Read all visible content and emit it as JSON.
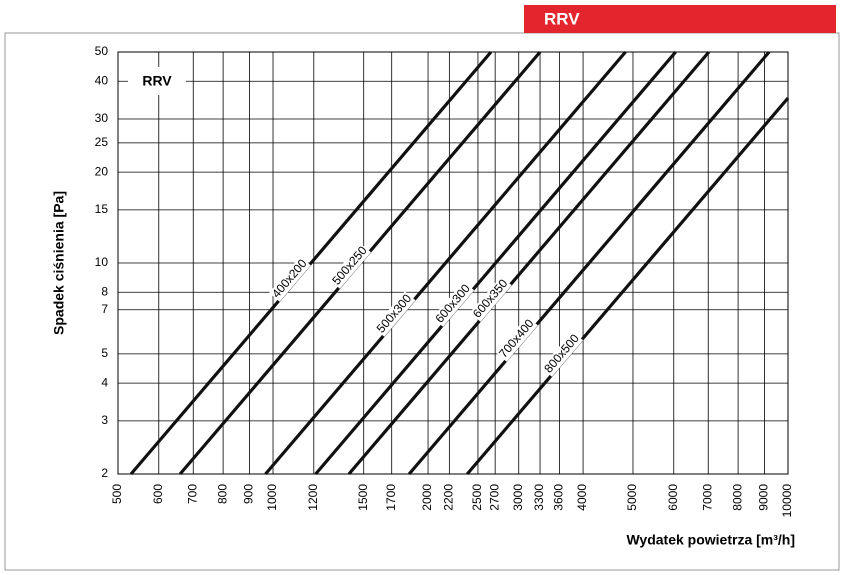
{
  "chart_data": {
    "type": "line",
    "title": "RRV",
    "inner_label": "RRV",
    "x_label": "Wydatek powietrza [m³/h]",
    "y_label": "Spadek ciśnienia [Pa]",
    "log_x": true,
    "log_y": true,
    "grid": true,
    "color": "#111111",
    "title_color": "#e3262d",
    "xlim": [
      500,
      10000
    ],
    "ylim": [
      2,
      50
    ],
    "xticks": [
      500,
      600,
      700,
      800,
      900,
      1000,
      1200,
      1500,
      1700,
      2000,
      2200,
      2500,
      2700,
      3000,
      3300,
      3600,
      4000,
      5000,
      6000,
      7000,
      8000,
      9000,
      10000
    ],
    "yticks": [
      2,
      3,
      4,
      5,
      7,
      8,
      10,
      15,
      20,
      25,
      30,
      40,
      50
    ],
    "series": [
      {
        "name": "400x200",
        "x": [
          530,
          2650
        ],
        "values": [
          2,
          50
        ]
      },
      {
        "name": "500x250",
        "x": [
          660,
          3300
        ],
        "values": [
          2,
          50
        ]
      },
      {
        "name": "500x300",
        "x": [
          967,
          4835
        ],
        "values": [
          2,
          50
        ]
      },
      {
        "name": "600x300",
        "x": [
          1210,
          6050
        ],
        "values": [
          2,
          50
        ]
      },
      {
        "name": "600x350",
        "x": [
          1404,
          7020
        ],
        "values": [
          2,
          50
        ]
      },
      {
        "name": "700x400",
        "x": [
          1838,
          9190
        ],
        "values": [
          2,
          50
        ]
      },
      {
        "name": "800x500",
        "x": [
          2383,
          10000
        ],
        "values": [
          2,
          35.2
        ]
      }
    ]
  }
}
